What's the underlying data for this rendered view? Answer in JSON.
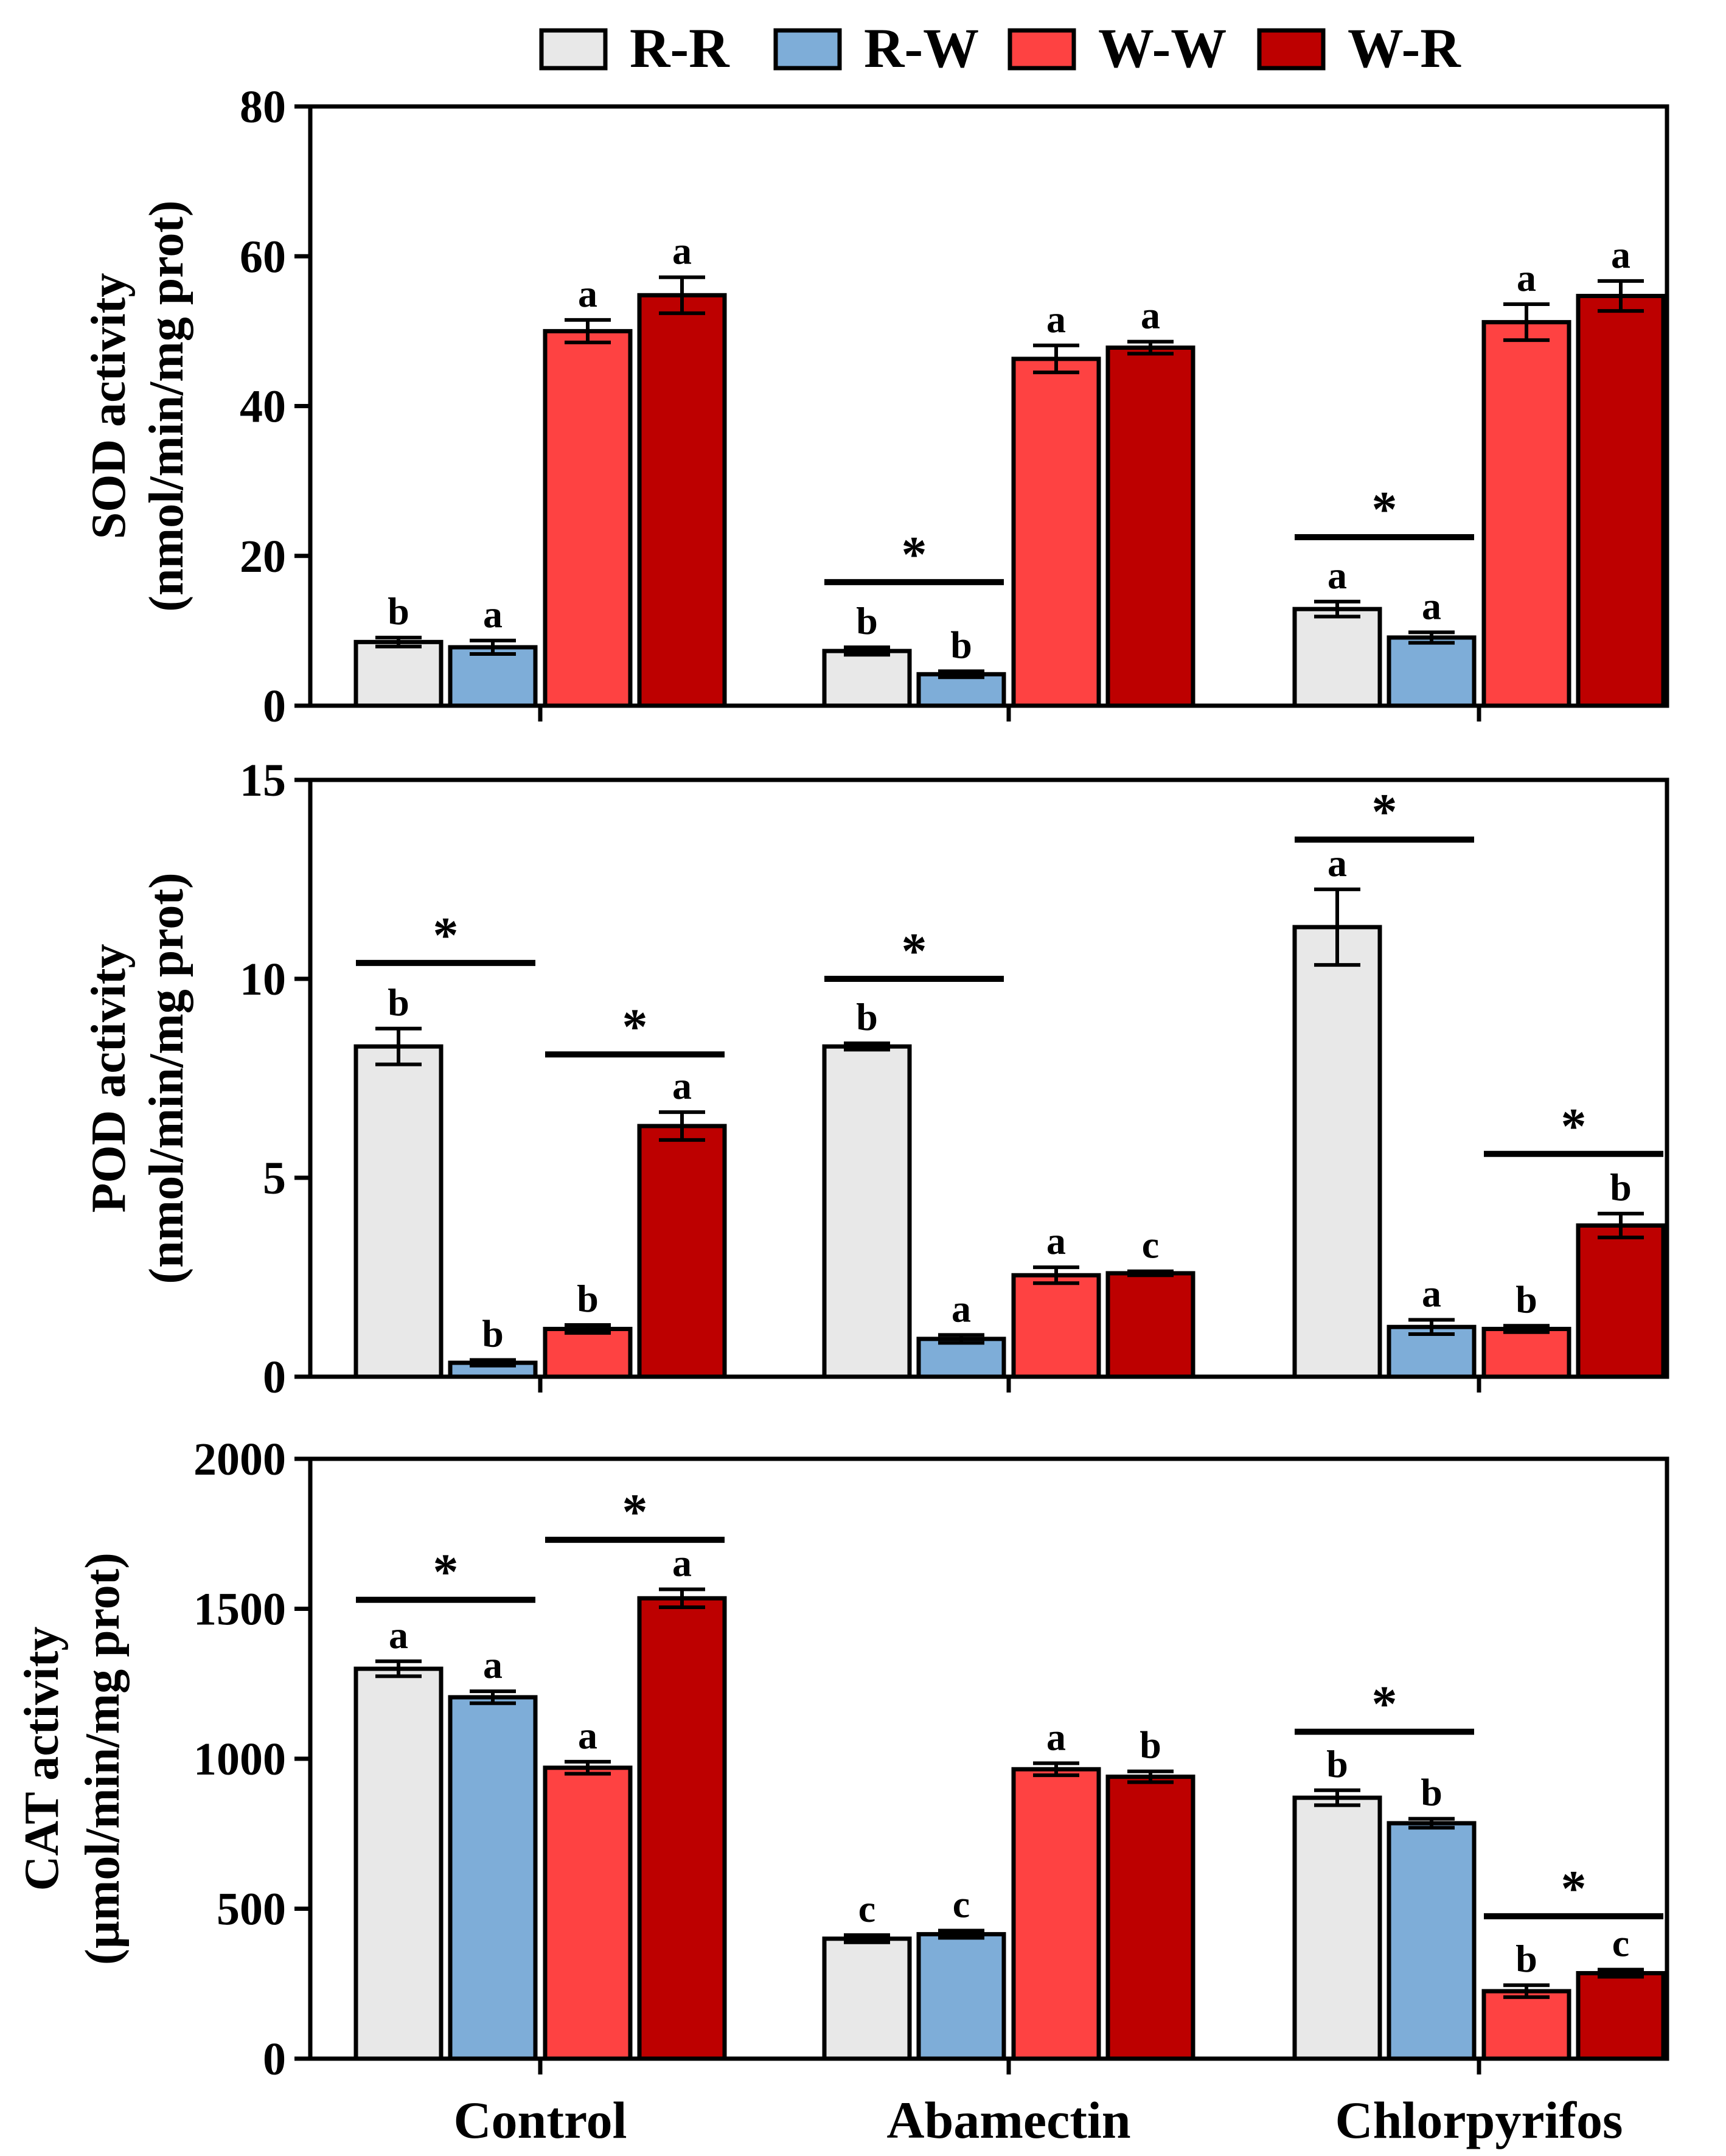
{
  "legend": [
    {
      "label": "R-R",
      "color": "#e8e8e8"
    },
    {
      "label": "R-W",
      "color": "#7eadd8"
    },
    {
      "label": "W-W",
      "color": "#fe4242"
    },
    {
      "label": "W-R",
      "color": "#bd0000"
    }
  ],
  "chart_data": [
    {
      "type": "bar",
      "panel": "SOD",
      "ylabel_line1": "SOD activity",
      "ylabel_line2": "(nmol/min/mg prot)",
      "ylim": [
        0,
        80
      ],
      "yticks": [
        "0",
        "20",
        "40",
        "60",
        "80"
      ],
      "categories": [
        "Control",
        "Abamectin",
        "Chlorpyrifos"
      ],
      "series": [
        {
          "name": "R-R",
          "values": [
            8.5,
            7.3,
            12.9
          ],
          "errors": [
            0.6,
            0.5,
            1.0
          ],
          "letters": [
            "b",
            "b",
            "a"
          ]
        },
        {
          "name": "R-W",
          "values": [
            7.8,
            4.2,
            9.1
          ],
          "errors": [
            0.9,
            0.4,
            0.7
          ],
          "letters": [
            "a",
            "b",
            "a"
          ]
        },
        {
          "name": "W-W",
          "values": [
            50.0,
            46.3,
            51.2
          ],
          "errors": [
            1.5,
            1.8,
            2.4
          ],
          "letters": [
            "a",
            "a",
            "a"
          ]
        },
        {
          "name": "W-R",
          "values": [
            54.8,
            47.8,
            54.7
          ],
          "errors": [
            2.4,
            0.8,
            2.0
          ],
          "letters": [
            "a",
            "a",
            "a"
          ]
        }
      ],
      "significance": [
        {
          "category": "Abamectin",
          "between": [
            "R-R",
            "R-W"
          ],
          "y": 16.5,
          "label": "*"
        },
        {
          "category": "Chlorpyrifos",
          "between": [
            "R-R",
            "R-W"
          ],
          "y": 22.5,
          "label": "*"
        }
      ]
    },
    {
      "type": "bar",
      "panel": "POD",
      "ylabel_line1": "POD activity",
      "ylabel_line2": "(nmol/min/mg prot)",
      "ylim": [
        0,
        15
      ],
      "yticks": [
        "0",
        "5",
        "10",
        "15"
      ],
      "categories": [
        "Control",
        "Abamectin",
        "Chlorpyrifos"
      ],
      "series": [
        {
          "name": "R-R",
          "values": [
            8.3,
            8.3,
            11.3
          ],
          "errors": [
            0.45,
            0.08,
            0.95
          ],
          "letters": [
            "b",
            "b",
            "a"
          ]
        },
        {
          "name": "R-W",
          "values": [
            0.35,
            0.95,
            1.25
          ],
          "errors": [
            0.07,
            0.1,
            0.18
          ],
          "letters": [
            "b",
            "a",
            "a"
          ]
        },
        {
          "name": "W-W",
          "values": [
            1.2,
            2.55,
            1.2
          ],
          "errors": [
            0.1,
            0.2,
            0.08
          ],
          "letters": [
            "b",
            "a",
            "b"
          ]
        },
        {
          "name": "W-R",
          "values": [
            6.3,
            2.6,
            3.8
          ],
          "errors": [
            0.35,
            0.05,
            0.3
          ],
          "letters": [
            "a",
            "c",
            "b"
          ]
        }
      ],
      "significance": [
        {
          "category": "Control",
          "between": [
            "R-R",
            "R-W"
          ],
          "y": 10.4,
          "label": "*"
        },
        {
          "category": "Control",
          "between": [
            "W-W",
            "W-R"
          ],
          "y": 8.1,
          "label": "*"
        },
        {
          "category": "Abamectin",
          "between": [
            "R-R",
            "R-W"
          ],
          "y": 10.0,
          "label": "*"
        },
        {
          "category": "Chlorpyrifos",
          "between": [
            "R-R",
            "R-W"
          ],
          "y": 13.5,
          "label": "*"
        },
        {
          "category": "Chlorpyrifos",
          "between": [
            "W-W",
            "W-R"
          ],
          "y": 5.6,
          "label": "*"
        }
      ]
    },
    {
      "type": "bar",
      "panel": "CAT",
      "ylabel_line1": "CAT activity",
      "ylabel_line2": "(µmol/min/mg prot)",
      "ylim": [
        0,
        2000
      ],
      "yticks": [
        "0",
        "500",
        "1000",
        "1500",
        "2000"
      ],
      "categories": [
        "Control",
        "Abamectin",
        "Chlorpyrifos"
      ],
      "series": [
        {
          "name": "R-R",
          "values": [
            1300,
            400,
            870
          ],
          "errors": [
            25,
            12,
            25
          ],
          "letters": [
            "a",
            "c",
            "b"
          ]
        },
        {
          "name": "R-W",
          "values": [
            1205,
            415,
            785
          ],
          "errors": [
            20,
            12,
            15
          ],
          "letters": [
            "a",
            "c",
            "b"
          ]
        },
        {
          "name": "W-W",
          "values": [
            970,
            965,
            225
          ],
          "errors": [
            20,
            20,
            20
          ],
          "letters": [
            "a",
            "a",
            "b"
          ]
        },
        {
          "name": "W-R",
          "values": [
            1535,
            940,
            285
          ],
          "errors": [
            30,
            18,
            12
          ],
          "letters": [
            "a",
            "b",
            "c"
          ]
        }
      ],
      "significance": [
        {
          "category": "Control",
          "between": [
            "R-R",
            "R-W"
          ],
          "y": 1530,
          "label": "*"
        },
        {
          "category": "Control",
          "between": [
            "W-W",
            "W-R"
          ],
          "y": 1730,
          "label": "*"
        },
        {
          "category": "Chlorpyrifos",
          "between": [
            "R-R",
            "R-W"
          ],
          "y": 1090,
          "label": "*"
        },
        {
          "category": "Chlorpyrifos",
          "between": [
            "W-W",
            "W-R"
          ],
          "y": 475,
          "label": "*"
        }
      ]
    }
  ]
}
